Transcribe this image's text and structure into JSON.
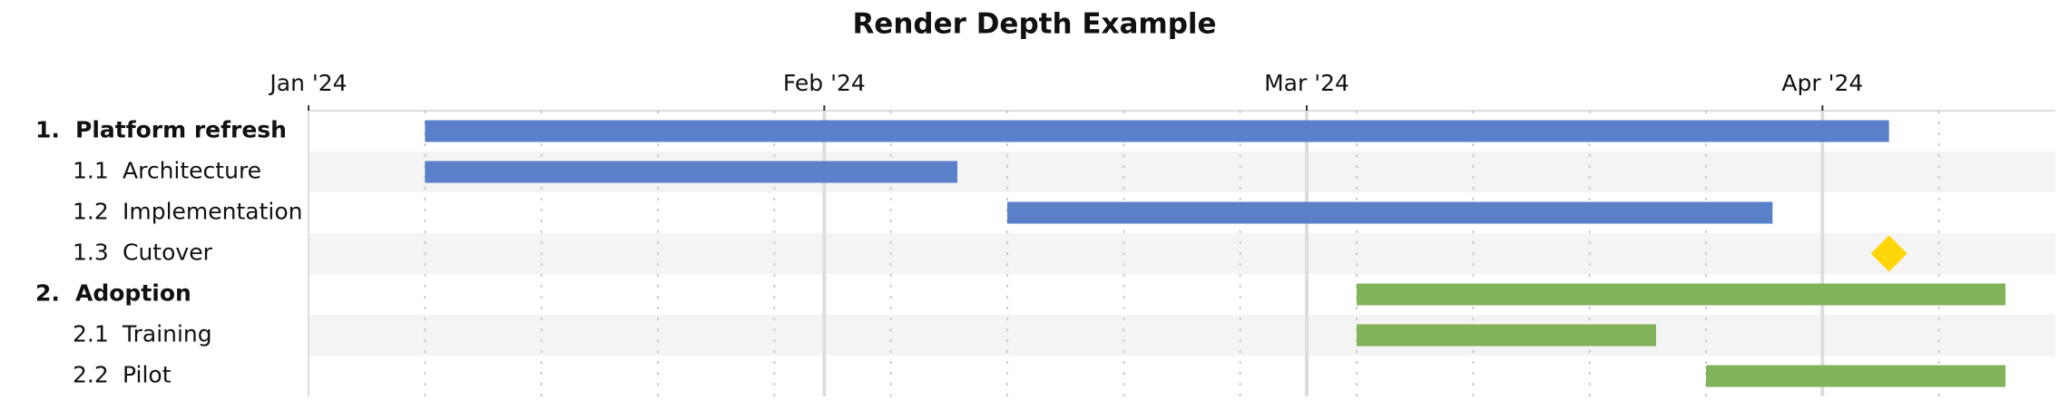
{
  "chart_data": {
    "type": "gantt",
    "title": "Render Depth Example",
    "xlim": [
      "2024-01-01",
      "2024-04-15"
    ],
    "xticks": [
      {
        "value": "2024-01-01",
        "label": "Jan '24"
      },
      {
        "value": "2024-02-01",
        "label": "Feb '24"
      },
      {
        "value": "2024-03-01",
        "label": "Mar '24"
      },
      {
        "value": "2024-04-01",
        "label": "Apr '24"
      }
    ],
    "xminorticks": [
      "2024-01-08",
      "2024-01-15",
      "2024-01-22",
      "2024-01-29",
      "2024-02-05",
      "2024-02-12",
      "2024-02-19",
      "2024-02-26",
      "2024-03-04",
      "2024-03-11",
      "2024-03-18",
      "2024-03-25",
      "2024-04-08"
    ],
    "tasks": [
      {
        "id": "1.",
        "name": "Platform refresh",
        "level": 1,
        "start": "2024-01-08",
        "end": "2024-04-05",
        "color": "#5a80c9"
      },
      {
        "id": "1.1",
        "name": "Architecture",
        "level": 2,
        "start": "2024-01-08",
        "end": "2024-02-09",
        "color": "#5a80c9"
      },
      {
        "id": "1.2",
        "name": "Implementation",
        "level": 2,
        "start": "2024-02-12",
        "end": "2024-03-29",
        "color": "#5a80c9"
      },
      {
        "id": "1.3",
        "name": "Cutover",
        "level": 2,
        "start": "2024-04-05",
        "end": "2024-04-05",
        "milestone": true,
        "color": "#ffd60a"
      },
      {
        "id": "2.",
        "name": "Adoption",
        "level": 1,
        "start": "2024-03-04",
        "end": "2024-04-12",
        "color": "#80b35a"
      },
      {
        "id": "2.1",
        "name": "Training",
        "level": 2,
        "start": "2024-03-04",
        "end": "2024-03-22",
        "color": "#80b35a"
      },
      {
        "id": "2.2",
        "name": "Pilot",
        "level": 2,
        "start": "2024-03-25",
        "end": "2024-04-12",
        "color": "#80b35a"
      }
    ]
  }
}
